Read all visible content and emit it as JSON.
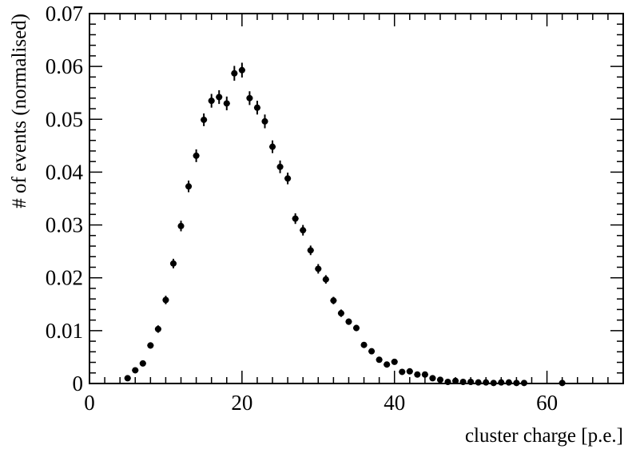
{
  "chart_data": {
    "type": "scatter",
    "title": "",
    "xlabel": "cluster charge [p.e.]",
    "ylabel": "# of events (normalised)",
    "xlim": [
      0,
      70
    ],
    "ylim": [
      0,
      0.07
    ],
    "grid": false,
    "x_ticks": [
      0,
      20,
      40,
      60
    ],
    "x_tick_labels": [
      "0",
      "20",
      "40",
      "60"
    ],
    "y_ticks": [
      0,
      0.01,
      0.02,
      0.03,
      0.04,
      0.05,
      0.06,
      0.07
    ],
    "y_tick_labels": [
      "0",
      "0.01",
      "0.02",
      "0.03",
      "0.04",
      "0.05",
      "0.06",
      "0.07"
    ],
    "marker_color": "#000000",
    "series": [
      {
        "x": [
          5,
          6,
          7,
          8,
          9,
          10,
          11,
          12,
          13,
          14,
          15,
          16,
          17,
          18,
          19,
          20,
          21,
          22,
          23,
          24,
          25,
          26,
          27,
          28,
          29,
          30,
          31,
          32,
          33,
          34,
          35,
          36,
          37,
          38,
          39,
          40,
          41,
          42,
          43,
          44,
          45,
          46,
          47,
          48,
          49,
          50,
          51,
          52,
          53,
          54,
          55,
          56,
          57,
          62
        ],
        "y": [
          0.001,
          0.0025,
          0.0038,
          0.0072,
          0.0103,
          0.0158,
          0.0227,
          0.0298,
          0.0373,
          0.0431,
          0.0499,
          0.0535,
          0.0542,
          0.053,
          0.0587,
          0.0593,
          0.054,
          0.0522,
          0.0496,
          0.0448,
          0.041,
          0.0388,
          0.0312,
          0.029,
          0.0252,
          0.0217,
          0.0197,
          0.0157,
          0.0133,
          0.0117,
          0.0105,
          0.0073,
          0.0061,
          0.0045,
          0.0036,
          0.0041,
          0.0022,
          0.0023,
          0.0017,
          0.0017,
          0.001,
          0.0007,
          0.0003,
          0.0005,
          0.0003,
          0.0003,
          0.0002,
          0.0002,
          0.0001,
          0.0002,
          0.0002,
          0.0001,
          0.0001,
          0.0001
        ],
        "err": [
          0.0003,
          0.0004,
          0.0005,
          0.0006,
          0.0007,
          0.0008,
          0.0009,
          0.001,
          0.0011,
          0.0012,
          0.0012,
          0.0013,
          0.0013,
          0.0013,
          0.0014,
          0.0014,
          0.0013,
          0.0013,
          0.0013,
          0.0012,
          0.0012,
          0.0011,
          0.001,
          0.001,
          0.0009,
          0.0009,
          0.0008,
          0.0007,
          0.0007,
          0.0006,
          0.0006,
          0.0005,
          0.0005,
          0.0004,
          0.0004,
          0.0004,
          0.0003,
          0.0003,
          0.0003,
          0.0003,
          0.0002,
          0.0002,
          0.0001,
          0.0002,
          0.0001,
          0.0001,
          0.0001,
          0.0001,
          0.0001,
          0.0001,
          0.0001,
          0.0001,
          0.0001,
          0.0001
        ]
      }
    ]
  }
}
